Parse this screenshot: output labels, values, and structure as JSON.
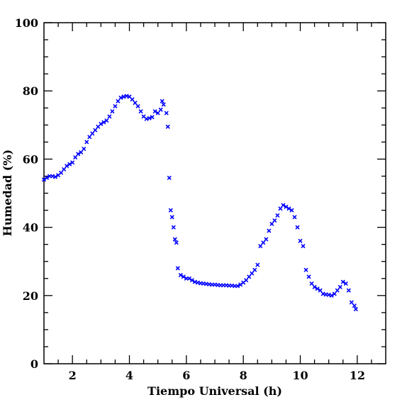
{
  "chart_data": {
    "type": "scatter",
    "xlabel": "Tiempo Universal (h)",
    "ylabel": "Humedad (%)",
    "color": "#0000ff",
    "marker": "x",
    "xlim": [
      1,
      13
    ],
    "ylim": [
      0,
      100
    ],
    "xticks": [
      2,
      4,
      6,
      8,
      10,
      12
    ],
    "yticks": [
      0,
      20,
      40,
      60,
      80,
      100
    ],
    "xminorticks": [
      1.5,
      2.5,
      3,
      3.5,
      4.5,
      5,
      5.5,
      6.5,
      7,
      7.5,
      8.5,
      9,
      9.5,
      10.5,
      11,
      11.5,
      12.5
    ],
    "yminorticks": [
      5,
      10,
      15,
      25,
      30,
      35,
      45,
      50,
      55,
      65,
      70,
      75,
      85,
      90,
      95
    ],
    "x": [
      1.0,
      1.1,
      1.2,
      1.3,
      1.4,
      1.5,
      1.6,
      1.7,
      1.8,
      1.9,
      2.0,
      2.1,
      2.2,
      2.3,
      2.4,
      2.5,
      2.6,
      2.7,
      2.8,
      2.9,
      3.0,
      3.1,
      3.2,
      3.3,
      3.4,
      3.5,
      3.6,
      3.7,
      3.8,
      3.9,
      4.0,
      4.1,
      4.2,
      4.3,
      4.4,
      4.5,
      4.6,
      4.7,
      4.8,
      4.9,
      5.0,
      5.1,
      5.15,
      5.2,
      5.3,
      5.35,
      5.4,
      5.45,
      5.5,
      5.55,
      5.6,
      5.65,
      5.7,
      5.8,
      5.9,
      6.0,
      6.1,
      6.2,
      6.3,
      6.4,
      6.5,
      6.6,
      6.7,
      6.8,
      6.9,
      7.0,
      7.1,
      7.2,
      7.3,
      7.4,
      7.5,
      7.6,
      7.7,
      7.8,
      7.9,
      8.0,
      8.1,
      8.2,
      8.3,
      8.4,
      8.5,
      8.6,
      8.7,
      8.8,
      8.9,
      9.0,
      9.1,
      9.2,
      9.3,
      9.4,
      9.5,
      9.6,
      9.7,
      9.8,
      9.9,
      10.0,
      10.1,
      10.2,
      10.3,
      10.4,
      10.5,
      10.6,
      10.7,
      10.8,
      10.9,
      11.0,
      11.1,
      11.2,
      11.3,
      11.4,
      11.5,
      11.6,
      11.7,
      11.8,
      11.9,
      11.95
    ],
    "values": [
      54,
      54.5,
      55,
      55,
      54.8,
      55.3,
      56,
      57,
      58,
      58.5,
      59,
      60.5,
      61.5,
      62,
      63,
      65,
      66.5,
      67.5,
      68.5,
      69.5,
      70.3,
      70.8,
      71.3,
      72.5,
      74,
      75.5,
      77,
      78,
      78.3,
      78.5,
      78.3,
      77.5,
      76.5,
      75.5,
      74,
      72.5,
      71.8,
      72,
      72.3,
      74,
      73.5,
      74.5,
      77,
      76,
      73.5,
      69.5,
      54.5,
      45,
      43,
      40,
      36.5,
      35.5,
      28,
      26,
      25.5,
      25,
      25,
      24.5,
      24,
      23.8,
      23.6,
      23.5,
      23.4,
      23.3,
      23.2,
      23.2,
      23.1,
      23,
      23,
      23,
      22.9,
      22.9,
      22.8,
      22.8,
      23.2,
      23.8,
      24.5,
      25.5,
      26.5,
      27.5,
      29,
      34.5,
      35.5,
      36.5,
      39,
      41,
      42,
      43.5,
      45.5,
      46.5,
      46,
      45.5,
      45,
      43,
      40,
      36,
      34.5,
      27.5,
      25.5,
      23.5,
      22.5,
      22,
      21.5,
      20.5,
      20.3,
      20.2,
      20,
      20.5,
      21.5,
      22.5,
      24,
      23.5,
      21.5,
      18,
      17,
      16
    ]
  }
}
